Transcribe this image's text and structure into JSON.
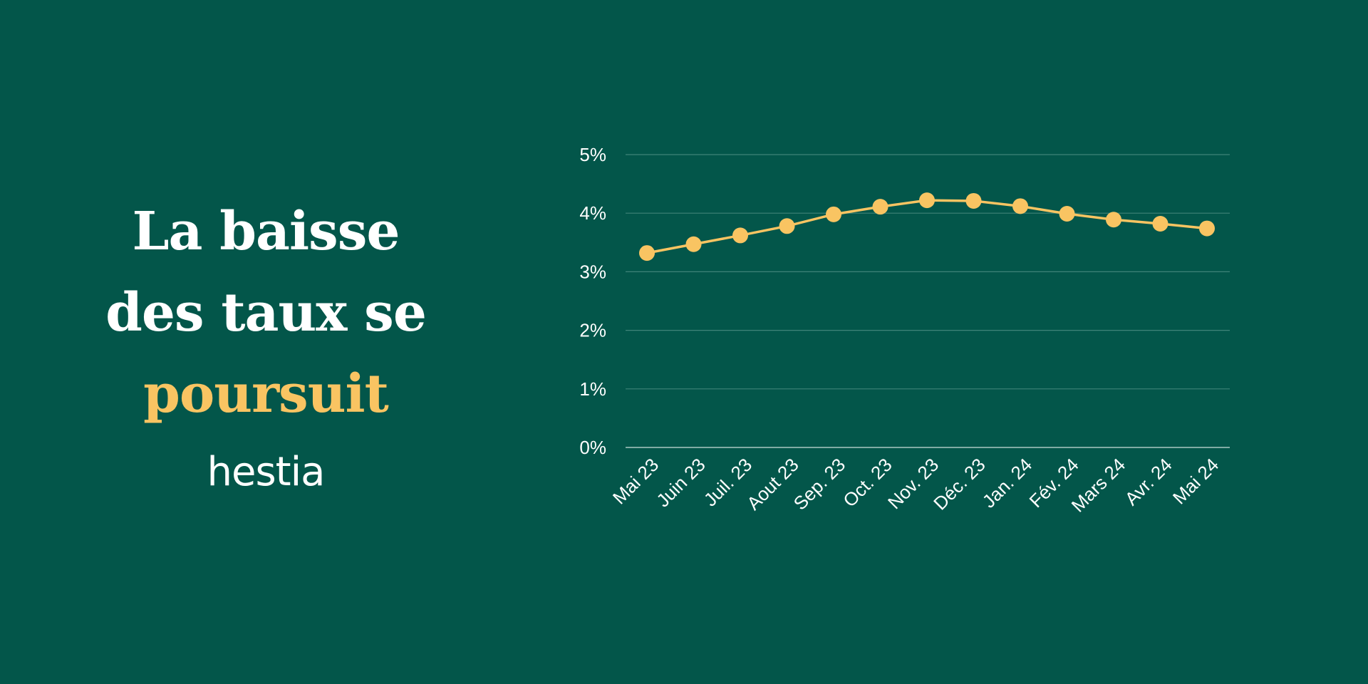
{
  "headline": {
    "line1": "La baisse",
    "line2": "des taux se",
    "line3": "poursuit"
  },
  "brand": "hestia",
  "colors": {
    "background": "#03564a",
    "accent": "#f9c462",
    "text": "#ffffff",
    "grid": "#3f8378"
  },
  "chart_data": {
    "type": "line",
    "categories": [
      "Mai 23",
      "Juin 23",
      "Juil. 23",
      "Aout 23",
      "Sep. 23",
      "Oct. 23",
      "Nov. 23",
      "Déc. 23",
      "Jan. 24",
      "Fév. 24",
      "Mars 24",
      "Avr. 24",
      "Mai 24"
    ],
    "series": [
      {
        "values": [
          3.32,
          3.47,
          3.62,
          3.78,
          3.98,
          4.11,
          4.22,
          4.21,
          4.12,
          3.99,
          3.89,
          3.82,
          3.74
        ]
      }
    ],
    "yticks": [
      "0%",
      "1%",
      "2%",
      "3%",
      "4%",
      "5%"
    ],
    "ylim": [
      0,
      5
    ],
    "grid": true,
    "legend": "none",
    "line_color": "#f9c462"
  }
}
